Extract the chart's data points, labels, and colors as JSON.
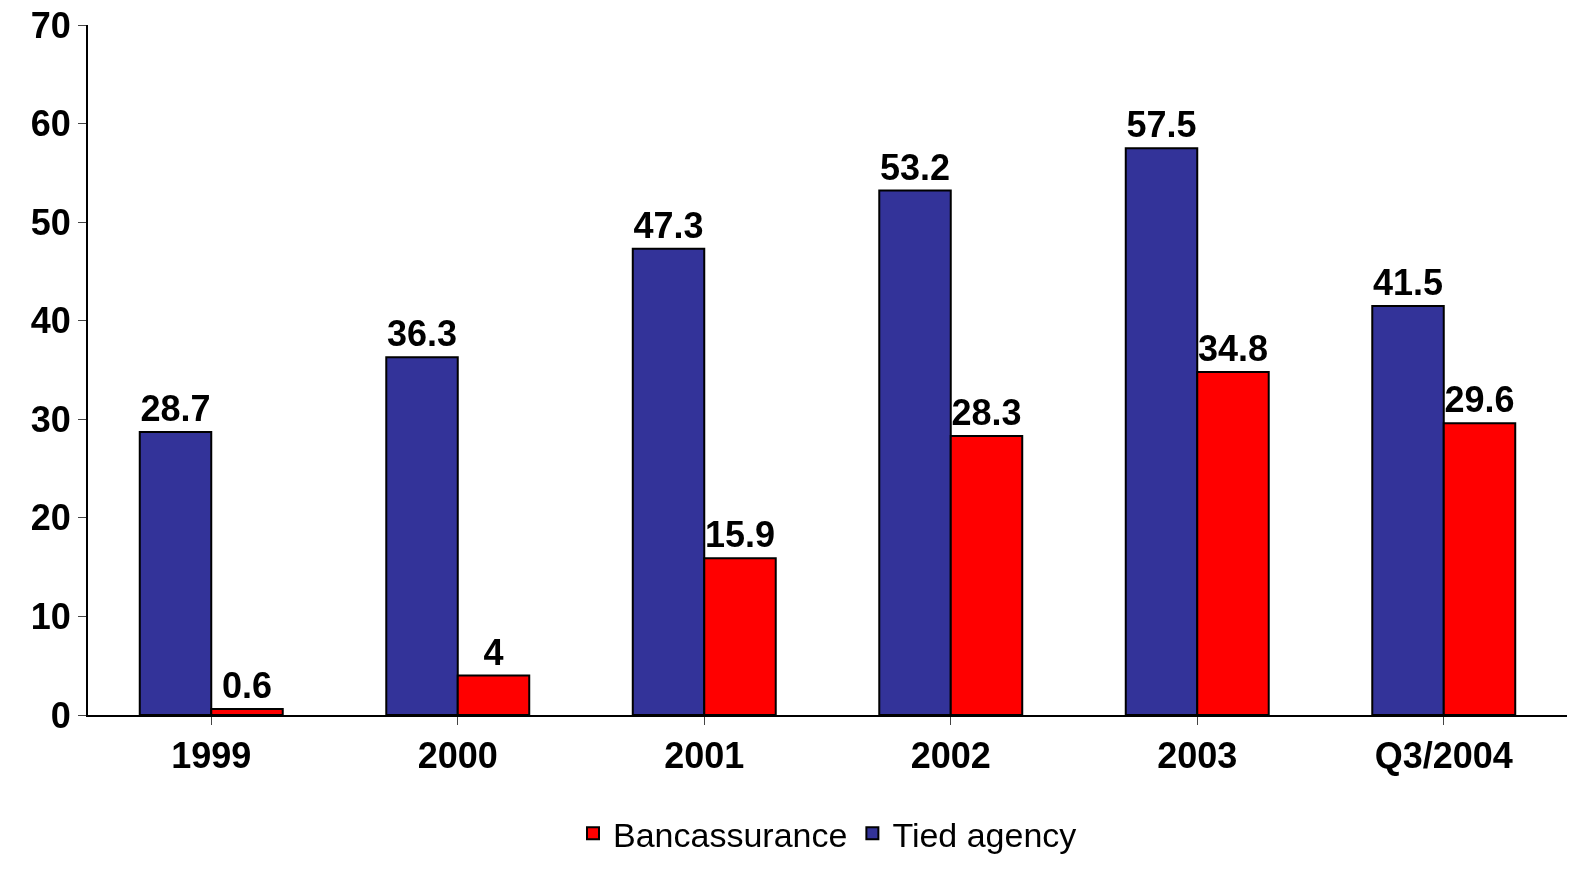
{
  "chart_data": {
    "type": "bar",
    "categories": [
      "1999",
      "2000",
      "2001",
      "2002",
      "2003",
      "Q3/2004"
    ],
    "series": [
      {
        "name": "Tied agency",
        "color": "#333399",
        "values": [
          28.7,
          36.3,
          47.3,
          53.2,
          57.5,
          41.5
        ]
      },
      {
        "name": "Bancassurance",
        "color": "#ff0000",
        "values": [
          0.6,
          4,
          15.9,
          28.3,
          34.8,
          29.6
        ]
      }
    ],
    "ylim": [
      0,
      70
    ],
    "yticks": [
      0,
      10,
      20,
      30,
      40,
      50,
      60,
      70
    ],
    "grid": false,
    "legend": "bottom",
    "data_labels": true
  }
}
